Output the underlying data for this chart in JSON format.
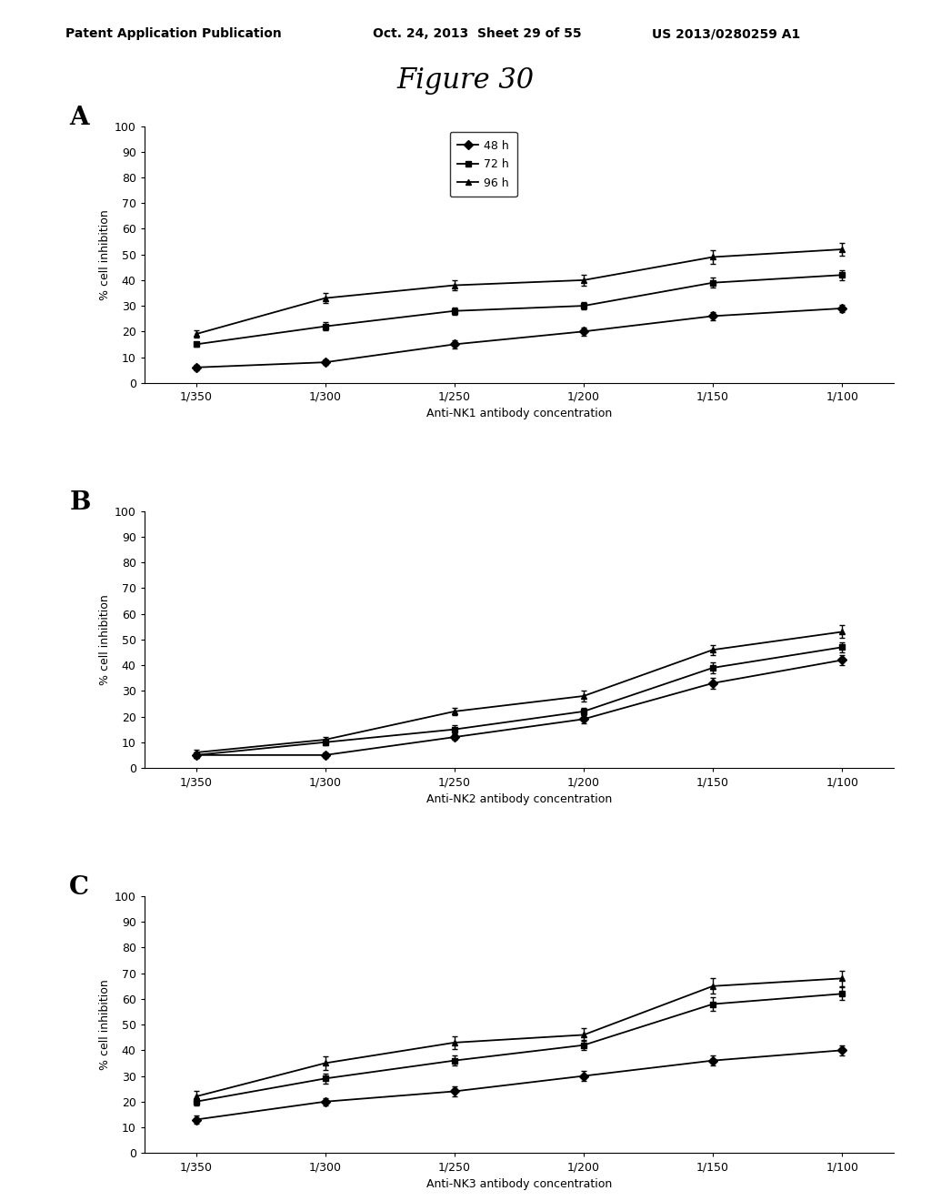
{
  "x_labels": [
    "1/350",
    "1/300",
    "1/250",
    "1/200",
    "1/150",
    "1/100"
  ],
  "x_values": [
    0,
    1,
    2,
    3,
    4,
    5
  ],
  "panel_A": {
    "label": "A",
    "xlabel": "Anti-NK1 antibody concentration",
    "series": {
      "48h": [
        6,
        8,
        15,
        20,
        26,
        29
      ],
      "72h": [
        15,
        22,
        28,
        30,
        39,
        42
      ],
      "96h": [
        19,
        33,
        38,
        40,
        49,
        52
      ]
    },
    "errors": {
      "48h": [
        1.0,
        1.0,
        1.5,
        1.5,
        1.5,
        1.5
      ],
      "72h": [
        1.0,
        1.5,
        1.5,
        1.5,
        2.0,
        2.0
      ],
      "96h": [
        1.5,
        2.0,
        2.0,
        2.0,
        2.5,
        2.5
      ]
    }
  },
  "panel_B": {
    "label": "B",
    "xlabel": "Anti-NK2 antibody concentration",
    "series": {
      "48h": [
        5,
        5,
        12,
        19,
        33,
        42
      ],
      "72h": [
        5,
        10,
        15,
        22,
        39,
        47
      ],
      "96h": [
        6,
        11,
        22,
        28,
        46,
        53
      ]
    },
    "errors": {
      "48h": [
        1.0,
        1.0,
        1.0,
        1.5,
        2.0,
        2.0
      ],
      "72h": [
        1.0,
        1.0,
        1.5,
        1.5,
        2.0,
        2.0
      ],
      "96h": [
        1.0,
        1.0,
        1.5,
        2.0,
        2.0,
        2.5
      ]
    }
  },
  "panel_C": {
    "label": "C",
    "xlabel": "Anti-NK3 antibody concentration",
    "series": {
      "48h": [
        13,
        20,
        24,
        30,
        36,
        40
      ],
      "72h": [
        20,
        29,
        36,
        42,
        58,
        62
      ],
      "96h": [
        22,
        35,
        43,
        46,
        65,
        68
      ]
    },
    "errors": {
      "48h": [
        1.5,
        1.5,
        2.0,
        2.0,
        2.0,
        2.0
      ],
      "72h": [
        1.5,
        2.0,
        2.0,
        2.0,
        2.5,
        2.5
      ],
      "96h": [
        2.0,
        2.5,
        2.5,
        2.5,
        3.0,
        3.0
      ]
    }
  },
  "ylim": [
    0,
    100
  ],
  "yticks": [
    0,
    10,
    20,
    30,
    40,
    50,
    60,
    70,
    80,
    90,
    100
  ],
  "ylabel": "% cell inhibition",
  "legend_labels": [
    "48 h",
    "72 h",
    "96 h"
  ],
  "markers": [
    "D",
    "s",
    "^"
  ],
  "line_color": "#000000",
  "figure_title": "Figure 30",
  "header_left": "Patent Application Publication",
  "header_mid": "Oct. 24, 2013  Sheet 29 of 55",
  "header_right": "US 2013/0280259 A1"
}
